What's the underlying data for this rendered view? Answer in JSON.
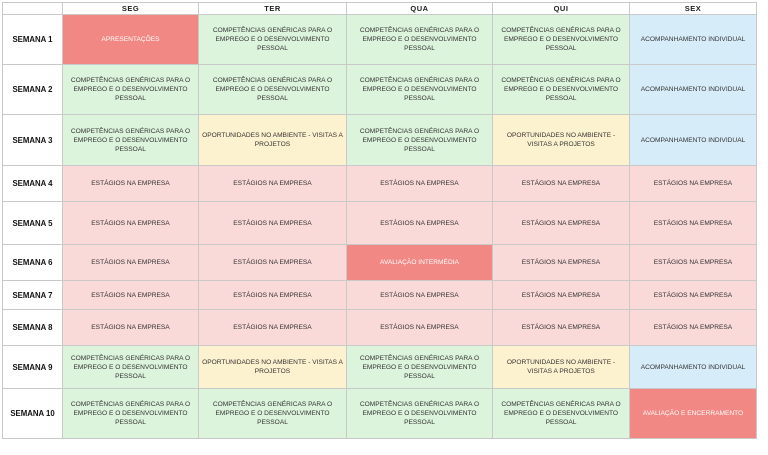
{
  "days": [
    "SEG",
    "TER",
    "QUA",
    "QUI",
    "SEX"
  ],
  "weeks": [
    {
      "label": "SEMANA 1",
      "cells": [
        {
          "text": "APRESENTAÇÕES",
          "color": "strong-red"
        },
        {
          "text": "COMPETÊNCIAS GENÉRICAS PARA O EMPREGO E O DESENVOLVIMENTO PESSOAL",
          "color": "green"
        },
        {
          "text": "COMPETÊNCIAS GENÉRICAS PARA O EMPREGO E O DESENVOLVIMENTO PESSOAL",
          "color": "green"
        },
        {
          "text": "COMPETÊNCIAS GENÉRICAS PARA O EMPREGO E O DESENVOLVIMENTO PESSOAL",
          "color": "green"
        },
        {
          "text": "ACOMPANHAMENTO INDIVIDUAL",
          "color": "blue"
        }
      ]
    },
    {
      "label": "SEMANA 2",
      "cells": [
        {
          "text": "COMPETÊNCIAS GENÉRICAS PARA O EMPREGO E O DESENVOLVIMENTO PESSOAL",
          "color": "green"
        },
        {
          "text": "COMPETÊNCIAS GENÉRICAS PARA O EMPREGO E O DESENVOLVIMENTO PESSOAL",
          "color": "green"
        },
        {
          "text": "COMPETÊNCIAS GENÉRICAS PARA O EMPREGO E O DESENVOLVIMENTO PESSOAL",
          "color": "green"
        },
        {
          "text": "COMPETÊNCIAS GENÉRICAS PARA O EMPREGO E O DESENVOLVIMENTO PESSOAL",
          "color": "green"
        },
        {
          "text": "ACOMPANHAMENTO INDIVIDUAL",
          "color": "blue"
        }
      ]
    },
    {
      "label": "SEMANA 3",
      "cells": [
        {
          "text": "COMPETÊNCIAS GENÉRICAS PARA O EMPREGO E O DESENVOLVIMENTO PESSOAL",
          "color": "green"
        },
        {
          "text": "OPORTUNIDADES NO AMBIENTE - VISITAS A PROJETOS",
          "color": "yellow"
        },
        {
          "text": "COMPETÊNCIAS GENÉRICAS PARA O EMPREGO E O DESENVOLVIMENTO PESSOAL",
          "color": "green"
        },
        {
          "text": "OPORTUNIDADES NO AMBIENTE - VISITAS A PROJETOS",
          "color": "yellow"
        },
        {
          "text": "ACOMPANHAMENTO INDIVIDUAL",
          "color": "blue"
        }
      ]
    },
    {
      "label": "SEMANA 4",
      "cells": [
        {
          "text": "ESTÁGIOS NA EMPRESA",
          "color": "red"
        },
        {
          "text": "ESTÁGIOS NA EMPRESA",
          "color": "red"
        },
        {
          "text": "ESTÁGIOS NA EMPRESA",
          "color": "red"
        },
        {
          "text": "ESTÁGIOS NA EMPRESA",
          "color": "red"
        },
        {
          "text": "ESTÁGIOS NA EMPRESA",
          "color": "red"
        }
      ]
    },
    {
      "label": "SEMANA 5",
      "cells": [
        {
          "text": "ESTÁGIOS NA EMPRESA",
          "color": "red"
        },
        {
          "text": "ESTÁGIOS NA EMPRESA",
          "color": "red"
        },
        {
          "text": "ESTÁGIOS NA EMPRESA",
          "color": "red"
        },
        {
          "text": "ESTÁGIOS NA EMPRESA",
          "color": "red"
        },
        {
          "text": "ESTÁGIOS NA EMPRESA",
          "color": "red"
        }
      ]
    },
    {
      "label": "SEMANA 6",
      "cells": [
        {
          "text": "ESTÁGIOS NA EMPRESA",
          "color": "red"
        },
        {
          "text": "ESTÁGIOS NA EMPRESA",
          "color": "red"
        },
        {
          "text": "AVALIAÇÃO INTERMÉDIA",
          "color": "strong-red"
        },
        {
          "text": "ESTÁGIOS NA EMPRESA",
          "color": "red"
        },
        {
          "text": "ESTÁGIOS NA EMPRESA",
          "color": "red"
        }
      ]
    },
    {
      "label": "SEMANA 7",
      "cells": [
        {
          "text": "ESTÁGIOS NA EMPRESA",
          "color": "red"
        },
        {
          "text": "ESTÁGIOS NA EMPRESA",
          "color": "red"
        },
        {
          "text": "ESTÁGIOS NA EMPRESA",
          "color": "red"
        },
        {
          "text": "ESTÁGIOS NA EMPRESA",
          "color": "red"
        },
        {
          "text": "ESTÁGIOS NA EMPRESA",
          "color": "red"
        }
      ]
    },
    {
      "label": "SEMANA 8",
      "cells": [
        {
          "text": "ESTÁGIOS NA EMPRESA",
          "color": "red"
        },
        {
          "text": "ESTÁGIOS NA EMPRESA",
          "color": "red"
        },
        {
          "text": "ESTÁGIOS NA EMPRESA",
          "color": "red"
        },
        {
          "text": "ESTÁGIOS NA EMPRESA",
          "color": "red"
        },
        {
          "text": "ESTÁGIOS NA EMPRESA",
          "color": "red"
        }
      ]
    },
    {
      "label": "SEMANA 9",
      "cells": [
        {
          "text": "COMPETÊNCIAS GENÉRICAS PARA O EMPREGO E O DESENVOLVIMENTO PESSOAL",
          "color": "green"
        },
        {
          "text": "OPORTUNIDADES NO AMBIENTE - VISITAS A PROJETOS",
          "color": "yellow"
        },
        {
          "text": "COMPETÊNCIAS GENÉRICAS PARA O EMPREGO E O DESENVOLVIMENTO PESSOAL",
          "color": "green"
        },
        {
          "text": "OPORTUNIDADES NO AMBIENTE - VISITAS A PROJETOS",
          "color": "yellow"
        },
        {
          "text": "ACOMPANHAMENTO INDIVIDUAL",
          "color": "blue"
        }
      ]
    },
    {
      "label": "SEMANA 10",
      "cells": [
        {
          "text": "COMPETÊNCIAS GENÉRICAS PARA O EMPREGO E O DESENVOLVIMENTO PESSOAL",
          "color": "green"
        },
        {
          "text": "COMPETÊNCIAS GENÉRICAS PARA O EMPREGO E O DESENVOLVIMENTO PESSOAL",
          "color": "green"
        },
        {
          "text": "COMPETÊNCIAS GENÉRICAS PARA O EMPREGO E O DESENVOLVIMENTO PESSOAL",
          "color": "green"
        },
        {
          "text": "COMPETÊNCIAS GENÉRICAS PARA O EMPREGO E O DESENVOLVIMENTO PESSOAL",
          "color": "green"
        },
        {
          "text": "AVALIAÇÃO E ENCERRAMENTO",
          "color": "strong-red"
        }
      ]
    }
  ]
}
